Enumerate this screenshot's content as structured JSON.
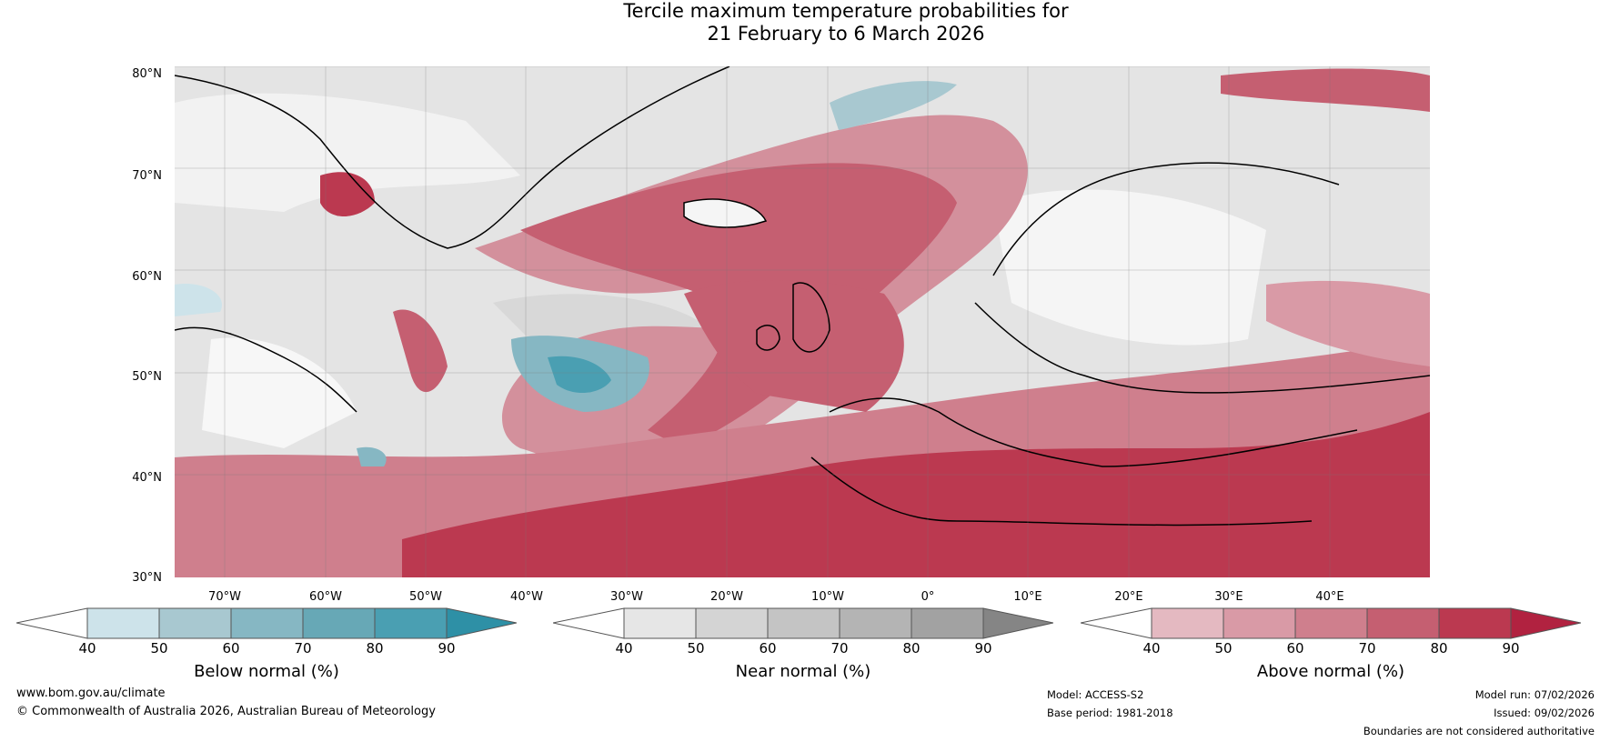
{
  "title": {
    "line1": "Tercile maximum temperature probabilities for",
    "line2": "21 February to 6 March 2026"
  },
  "map": {
    "lat_labels": [
      "80°N",
      "70°N",
      "60°N",
      "50°N",
      "40°N",
      "30°N"
    ],
    "lon_labels": [
      "70°W",
      "60°W",
      "50°W",
      "40°W",
      "30°W",
      "20°W",
      "10°W",
      "0°",
      "10°E",
      "20°E",
      "30°E",
      "40°E"
    ]
  },
  "colorbars": [
    {
      "label": "Below normal (%)",
      "ticks": [
        "40",
        "50",
        "60",
        "70",
        "80",
        "90"
      ],
      "colors": [
        "#cde3ea",
        "#a8c8d0",
        "#86b7c3",
        "#67a8b6",
        "#4a9fb2",
        "#2e90a6"
      ]
    },
    {
      "label": "Near normal (%)",
      "ticks": [
        "40",
        "50",
        "60",
        "70",
        "80",
        "90"
      ],
      "colors": [
        "#e6e6e6",
        "#d4d4d4",
        "#c4c4c4",
        "#b4b4b4",
        "#a2a2a2",
        "#858585"
      ]
    },
    {
      "label": "Above normal (%)",
      "ticks": [
        "40",
        "50",
        "60",
        "70",
        "80",
        "90"
      ],
      "colors": [
        "#e4b9c1",
        "#d99aa6",
        "#cf7f8d",
        "#c55f71",
        "#bb3950",
        "#b12240"
      ]
    }
  ],
  "footer": {
    "url": "www.bom.gov.au/climate",
    "copyright": "© Commonwealth of Australia 2026, Australian Bureau of Meteorology",
    "model": "Model: ACCESS-S2",
    "base_period": "Base period: 1981-2018",
    "model_run": "Model run: 07/02/2026",
    "issued": "Issued: 09/02/2026",
    "disclaimer": "Boundaries are not considered authoritative"
  }
}
